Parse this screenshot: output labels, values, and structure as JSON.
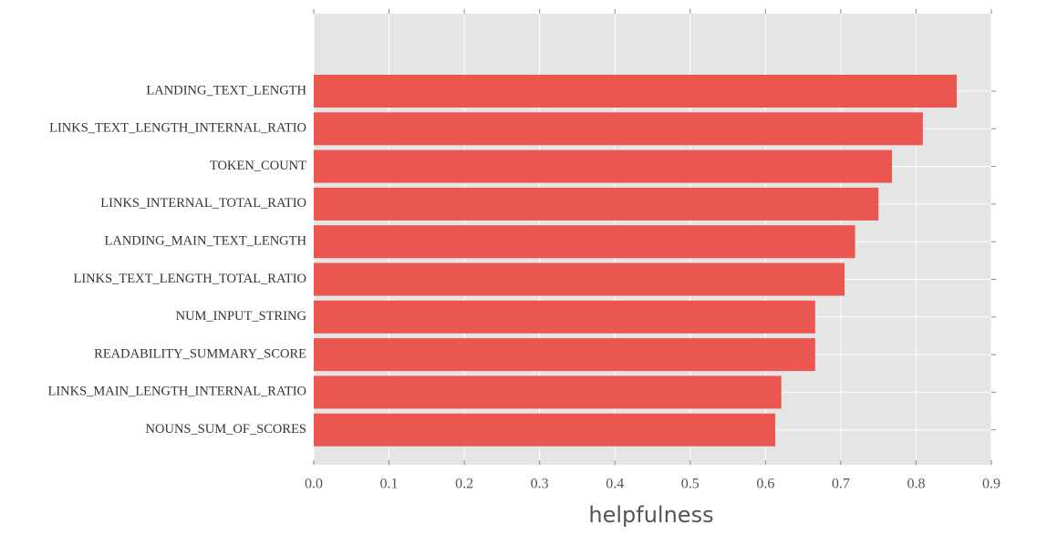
{
  "chart_data": {
    "type": "barh",
    "categories": [
      "LANDING_TEXT_LENGTH",
      "LINKS_TEXT_LENGTH_INTERNAL_RATIO",
      "TOKEN_COUNT",
      "LINKS_INTERNAL_TOTAL_RATIO",
      "LANDING_MAIN_TEXT_LENGTH",
      "LINKS_TEXT_LENGTH_TOTAL_RATIO",
      "NUM_INPUT_STRING",
      "READABILITY_SUMMARY_SCORE",
      "LINKS_MAIN_LENGTH_INTERNAL_RATIO",
      "NOUNS_SUM_OF_SCORES"
    ],
    "values": [
      0.854,
      0.809,
      0.768,
      0.75,
      0.719,
      0.705,
      0.666,
      0.666,
      0.621,
      0.613
    ],
    "color": "#ec5651",
    "xlabel": "helpfulness",
    "xlim": [
      0,
      0.9
    ],
    "xticks": [
      {
        "value": 0,
        "label": "0.0"
      },
      0.1,
      0.2,
      0.3,
      0.4,
      0.5,
      0.6,
      0.7,
      0.8,
      0.9
    ],
    "grid": true
  }
}
